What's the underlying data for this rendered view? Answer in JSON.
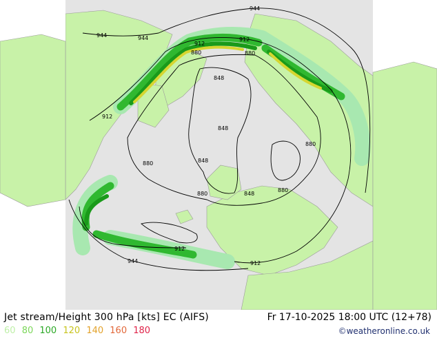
{
  "map": {
    "title": "Jet stream/Height 300 hPa [kts] EC (AIFS)",
    "datetime": "Fr 17-10-2025 18:00 UTC (12+78)",
    "credit": "©weatheronline.co.uk",
    "legend": [
      {
        "label": "60",
        "color": "#bff0a8"
      },
      {
        "label": "80",
        "color": "#7cd75a"
      },
      {
        "label": "100",
        "color": "#2aa825"
      },
      {
        "label": "120",
        "color": "#c8c41d"
      },
      {
        "label": "140",
        "color": "#e3a22b"
      },
      {
        "label": "160",
        "color": "#e2683a"
      },
      {
        "label": "180",
        "color": "#e0244a"
      }
    ],
    "contour_labels": [
      "944",
      "944",
      "944",
      "944",
      "912",
      "912",
      "912",
      "912",
      "912",
      "880",
      "880",
      "880",
      "880",
      "880",
      "880",
      "848",
      "848",
      "848",
      "848"
    ],
    "colors": {
      "sea": "#e4e4e4",
      "land": "#c8f2a8",
      "jet60": "#a8e8b0",
      "jet80": "#30b830",
      "jet100": "#1a9a1a",
      "jet120": "#d6d630",
      "outside": "#ffffff"
    }
  }
}
